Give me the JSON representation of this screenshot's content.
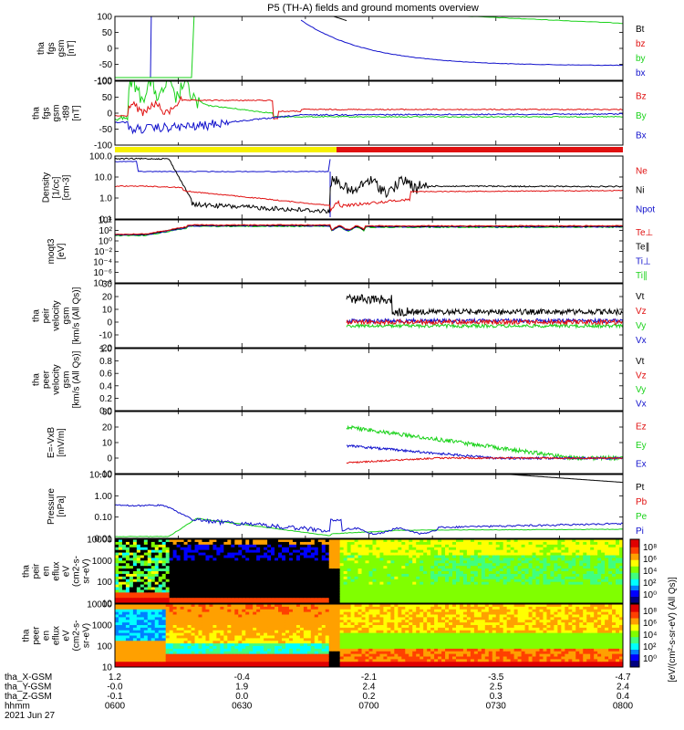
{
  "title": "P5 (TH-A) fields and ground moments overview",
  "colors": {
    "black": "#000000",
    "red": "#e01010",
    "green": "#19d219",
    "blue": "#1111cc",
    "yellow": "#f6f000",
    "barred": "#e01010"
  },
  "chart_data": [
    {
      "type": "line",
      "id": "fgs",
      "ylabel_lines": [
        "tha",
        "fgs",
        "gsm",
        "[nT]"
      ],
      "ylim": [
        -100,
        100
      ],
      "yticks": [
        "100",
        "50",
        "0",
        "-50",
        "-100"
      ],
      "series": [
        {
          "name": "Bt",
          "color": "black"
        },
        {
          "name": "bz",
          "color": "red"
        },
        {
          "name": "by",
          "color": "green"
        },
        {
          "name": "bx",
          "color": "blue"
        }
      ]
    },
    {
      "type": "line",
      "id": "fgs_t89",
      "ylabel_lines": [
        "tha",
        "fgs",
        "gsm",
        "-t89",
        "[nT]"
      ],
      "ylim": [
        -100,
        100
      ],
      "yticks": [
        "100",
        "50",
        "0",
        "-50",
        "-100"
      ],
      "series": [
        {
          "name": "Bz",
          "color": "red"
        },
        {
          "name": "By",
          "color": "green"
        },
        {
          "name": "Bx",
          "color": "blue"
        }
      ]
    },
    {
      "type": "line",
      "id": "density",
      "log": true,
      "ylabel_lines": [
        "Density",
        "[1/cc]",
        "[cm-3]"
      ],
      "ylim": [
        0.05,
        200
      ],
      "yticks": [
        "100.0",
        "10.0",
        "1.0",
        "0.1"
      ],
      "series": [
        {
          "name": "Ne",
          "color": "red"
        },
        {
          "name": "Ni",
          "color": "black"
        },
        {
          "name": "Npot",
          "color": "blue"
        }
      ]
    },
    {
      "type": "line",
      "id": "temp",
      "log": true,
      "ylabel_lines": [
        "moqt3",
        "[eV]"
      ],
      "yticks": [
        "10⁴",
        "10²",
        "10⁰",
        "10⁻²",
        "10⁻⁴",
        "10⁻⁶",
        "10⁻⁸"
      ],
      "series": [
        {
          "name": "Te⊥",
          "color": "red"
        },
        {
          "name": "Te∥",
          "color": "black"
        },
        {
          "name": "Ti⊥",
          "color": "blue"
        },
        {
          "name": "Ti∥",
          "color": "green"
        }
      ]
    },
    {
      "type": "line",
      "id": "peir_vel",
      "ylabel_lines": [
        "tha",
        "peir",
        "velocity",
        "gsm",
        "[km/s (All Qs)]"
      ],
      "ylim": [
        -20,
        30
      ],
      "yticks": [
        "30",
        "20",
        "10",
        "0",
        "-10",
        "-20"
      ],
      "series": [
        {
          "name": "Vt",
          "color": "black"
        },
        {
          "name": "Vz",
          "color": "red"
        },
        {
          "name": "Vy",
          "color": "green"
        },
        {
          "name": "Vx",
          "color": "blue"
        }
      ]
    },
    {
      "type": "line",
      "id": "peer_vel",
      "ylabel_lines": [
        "tha",
        "peer",
        "velocity",
        "gsm",
        "[km/s (All Qs)]"
      ],
      "ylim": [
        0,
        1
      ],
      "yticks": [
        "1.0",
        "0.8",
        "0.6",
        "0.4",
        "0.2",
        "0.0"
      ],
      "series": [
        {
          "name": "Vt",
          "color": "black"
        },
        {
          "name": "Vz",
          "color": "red"
        },
        {
          "name": "Vy",
          "color": "green"
        },
        {
          "name": "Vx",
          "color": "blue"
        }
      ]
    },
    {
      "type": "line",
      "id": "efield",
      "ylabel_lines": [
        "E=-VxB",
        "[mV/m]"
      ],
      "ylim": [
        -10,
        30
      ],
      "yticks": [
        "30",
        "20",
        "10",
        "0",
        "-10"
      ],
      "series": [
        {
          "name": "Ez",
          "color": "red"
        },
        {
          "name": "Ey",
          "color": "green"
        },
        {
          "name": "Ex",
          "color": "blue"
        }
      ]
    },
    {
      "type": "line",
      "id": "pressure",
      "log": true,
      "ylabel_lines": [
        "Pressure",
        "[nPa]"
      ],
      "yticks": [
        "10.00",
        "1.00",
        "0.10",
        "0.01"
      ],
      "series": [
        {
          "name": "Pt",
          "color": "black"
        },
        {
          "name": "Pb",
          "color": "red"
        },
        {
          "name": "Pe",
          "color": "green"
        },
        {
          "name": "Pi",
          "color": "blue"
        }
      ]
    },
    {
      "type": "heatmap",
      "id": "peir_eflux",
      "ylabel_lines": [
        "tha",
        "peir",
        "en",
        "eflux",
        "eV",
        "(cm2-s-",
        "sr-eV)"
      ],
      "yticks": [
        "10000",
        "1000",
        "100",
        "10"
      ]
    },
    {
      "type": "heatmap",
      "id": "peer_eflux",
      "ylabel_lines": [
        "tha",
        "peer",
        "en",
        "eflux",
        "eV",
        "(cm2-s-",
        "sr-eV)"
      ],
      "yticks": [
        "10000",
        "1000",
        "100",
        "10"
      ]
    }
  ],
  "colorbar": {
    "label": "[eV/(cm²-s-sr-eV) (All Qs)]",
    "ticks_top": [
      "10⁸",
      "10⁶",
      "10⁴",
      "10²",
      "10⁰"
    ],
    "ticks_bottom": [
      "10⁸",
      "10⁶",
      "10⁴",
      "10²",
      "10⁰"
    ]
  },
  "xaxis": {
    "rows": [
      {
        "label": "tha_X-GSM",
        "values": [
          "1.2",
          "-0.4",
          "-2.1",
          "-3.5",
          "-4.7"
        ]
      },
      {
        "label": "tha_Y-GSM",
        "values": [
          "-0.0",
          "1.9",
          "2.4",
          "2.5",
          "2.4"
        ]
      },
      {
        "label": "tha_Z-GSM",
        "values": [
          "-0.1",
          "0.0",
          "0.2",
          "0.3",
          "0.4"
        ]
      },
      {
        "label": "hhmm",
        "values": [
          "0600",
          "0630",
          "0700",
          "0730",
          "0800"
        ]
      }
    ],
    "date": "2021 Jun 27"
  }
}
